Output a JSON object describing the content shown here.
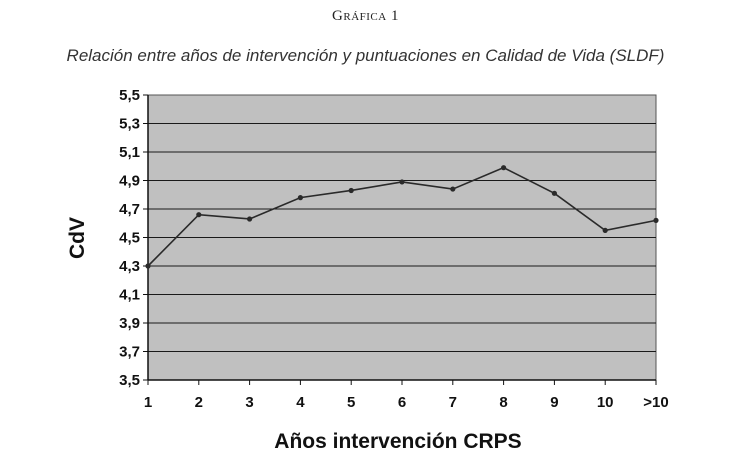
{
  "figure": {
    "label": "Gráfica 1",
    "caption": "Relación entre años de intervención y puntuaciones en Calidad de Vida (SLDF)"
  },
  "chart_data": {
    "type": "line",
    "title": "",
    "xlabel": "Años intervención CRPS",
    "ylabel": "CdV",
    "categories": [
      "1",
      "2",
      "3",
      "4",
      "5",
      "6",
      "7",
      "8",
      "9",
      "10",
      ">10"
    ],
    "series": [
      {
        "values": [
          4.3,
          4.66,
          4.63,
          4.78,
          4.83,
          4.89,
          4.84,
          4.99,
          4.81,
          4.55,
          4.62
        ]
      }
    ],
    "ylim": [
      3.5,
      5.5
    ],
    "yticks": [
      "3,5",
      "3,7",
      "3,9",
      "4,1",
      "4,3",
      "4,5",
      "4,7",
      "4,9",
      "5,1",
      "5,3",
      "5,5"
    ],
    "grid": true,
    "legend": "none",
    "colors": {
      "plot_background": "#c0c0c0",
      "line": "#2a2a2a",
      "grid": "#1a1a1a"
    }
  }
}
